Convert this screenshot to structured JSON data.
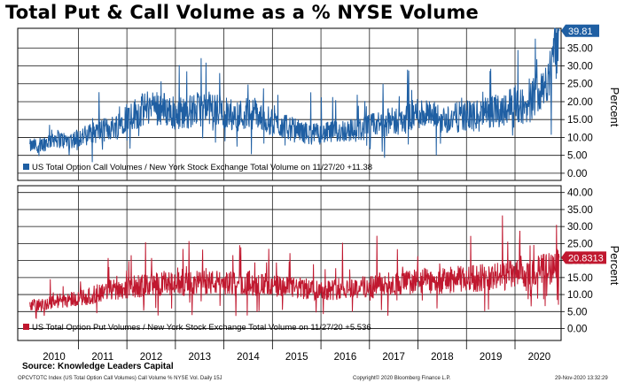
{
  "title": "Total Put & Call Volume as a % NYSE Volume",
  "source": "Source: Knowledge Leaders Capital",
  "footer": {
    "left": "OPCVTOTC Index (US Total Option Call Volumes) Call Volume % NYSE Vol. Daily 15J",
    "center": "Copyright© 2020 Bloomberg Finance L.P.",
    "right": "29-Nov-2020 13:32:29"
  },
  "colors": {
    "call": "#1f5fa3",
    "put": "#c0182f"
  },
  "chart_data": [
    {
      "type": "line",
      "ylabel": "Percent",
      "ylim": [
        -2,
        40.5
      ],
      "yticks": [
        "0.00",
        "5.00",
        "10.00",
        "15.00",
        "20.00",
        "25.00",
        "30.00",
        "35.00"
      ],
      "grid": true,
      "legend": "US Total Option Call Volumes / New York Stock Exchange Total Volume on 11/27/20 +11.38",
      "last_value_label": "39.81",
      "series": [
        {
          "values": [
            [
              2010.0,
              7.5
            ],
            [
              2010.25,
              8.0
            ],
            [
              2010.5,
              10.0
            ],
            [
              2010.75,
              9.0
            ],
            [
              2011.0,
              10.0
            ],
            [
              2011.25,
              11.0
            ],
            [
              2011.5,
              12.0
            ],
            [
              2011.75,
              13.0
            ],
            [
              2012.0,
              16.0
            ],
            [
              2012.25,
              17.0
            ],
            [
              2012.5,
              19.0
            ],
            [
              2012.75,
              18.0
            ],
            [
              2013.0,
              17.0
            ],
            [
              2013.25,
              17.0
            ],
            [
              2013.5,
              18.0
            ],
            [
              2013.75,
              18.0
            ],
            [
              2014.0,
              17.0
            ],
            [
              2014.25,
              16.0
            ],
            [
              2014.5,
              17.0
            ],
            [
              2014.75,
              16.0
            ],
            [
              2015.0,
              14.0
            ],
            [
              2015.25,
              13.0
            ],
            [
              2015.5,
              12.0
            ],
            [
              2015.75,
              11.0
            ],
            [
              2016.0,
              11.0
            ],
            [
              2016.25,
              11.5
            ],
            [
              2016.5,
              12.0
            ],
            [
              2016.75,
              12.0
            ],
            [
              2017.0,
              13.0
            ],
            [
              2017.25,
              14.0
            ],
            [
              2017.5,
              14.5
            ],
            [
              2017.75,
              15.0
            ],
            [
              2018.0,
              17.0
            ],
            [
              2018.25,
              16.0
            ],
            [
              2018.5,
              15.0
            ],
            [
              2018.75,
              15.5
            ],
            [
              2019.0,
              16.0
            ],
            [
              2019.25,
              16.5
            ],
            [
              2019.5,
              17.0
            ],
            [
              2019.75,
              18.0
            ],
            [
              2020.0,
              20.0
            ],
            [
              2020.25,
              18.0
            ],
            [
              2020.5,
              24.0
            ],
            [
              2020.75,
              28.0
            ],
            [
              2020.91,
              39.81
            ]
          ]
        }
      ]
    },
    {
      "type": "line",
      "ylabel": "Percent",
      "ylim": [
        -3.5,
        42
      ],
      "yticks": [
        "0.00",
        "5.00",
        "10.00",
        "15.00",
        "20.00",
        "25.00",
        "30.00",
        "35.00",
        "40.00"
      ],
      "xticks": [
        "2010",
        "2011",
        "2012",
        "2013",
        "2014",
        "2015",
        "2016",
        "2017",
        "2018",
        "2019",
        "2020"
      ],
      "grid": true,
      "legend": "US Total Option Put Volumes / New York Stock Exchange Total Volume on 11/27/20 +5.536",
      "last_value_label": "20.8313",
      "series": [
        {
          "values": [
            [
              2010.0,
              7.0
            ],
            [
              2010.25,
              7.0
            ],
            [
              2010.5,
              8.0
            ],
            [
              2010.75,
              8.5
            ],
            [
              2011.0,
              9.0
            ],
            [
              2011.25,
              9.5
            ],
            [
              2011.5,
              11.0
            ],
            [
              2011.75,
              11.5
            ],
            [
              2012.0,
              12.0
            ],
            [
              2012.25,
              12.5
            ],
            [
              2012.5,
              13.0
            ],
            [
              2012.75,
              13.0
            ],
            [
              2013.0,
              13.0
            ],
            [
              2013.25,
              13.0
            ],
            [
              2013.5,
              13.5
            ],
            [
              2013.75,
              13.5
            ],
            [
              2014.0,
              13.5
            ],
            [
              2014.25,
              13.0
            ],
            [
              2014.5,
              13.5
            ],
            [
              2014.75,
              13.0
            ],
            [
              2015.0,
              12.5
            ],
            [
              2015.25,
              12.0
            ],
            [
              2015.5,
              12.0
            ],
            [
              2015.75,
              11.5
            ],
            [
              2016.0,
              11.5
            ],
            [
              2016.25,
              11.5
            ],
            [
              2016.5,
              12.0
            ],
            [
              2016.75,
              12.0
            ],
            [
              2017.0,
              12.5
            ],
            [
              2017.25,
              13.0
            ],
            [
              2017.5,
              13.0
            ],
            [
              2017.75,
              13.5
            ],
            [
              2018.0,
              14.0
            ],
            [
              2018.25,
              14.0
            ],
            [
              2018.5,
              14.0
            ],
            [
              2018.75,
              14.5
            ],
            [
              2019.0,
              14.5
            ],
            [
              2019.25,
              15.0
            ],
            [
              2019.5,
              15.0
            ],
            [
              2019.75,
              15.5
            ],
            [
              2020.0,
              16.0
            ],
            [
              2020.25,
              15.0
            ],
            [
              2020.5,
              17.0
            ],
            [
              2020.75,
              18.0
            ],
            [
              2020.91,
              20.83
            ]
          ]
        }
      ]
    }
  ]
}
